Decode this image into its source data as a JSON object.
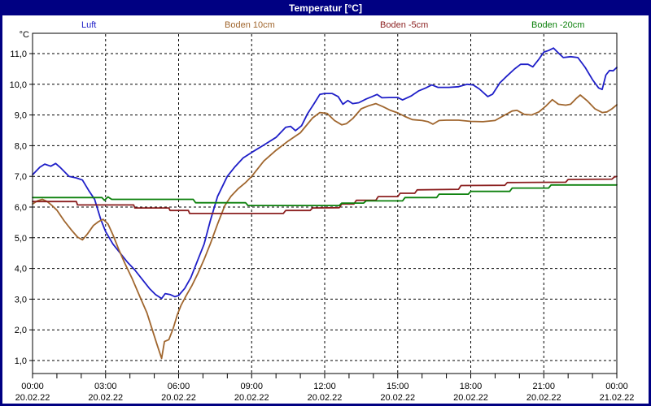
{
  "header": {
    "title": "Temperatur [°C]"
  },
  "colors": {
    "window_chrome": "#000082",
    "plot_background": "#ffffff",
    "grid": "#000000"
  },
  "y_axis": {
    "unit_label": "°C",
    "ticks": [
      {
        "value": 11,
        "label": "11,0"
      },
      {
        "value": 10,
        "label": "10,0"
      },
      {
        "value": 9,
        "label": "9,0"
      },
      {
        "value": 8,
        "label": "8,0"
      },
      {
        "value": 7,
        "label": "7,0"
      },
      {
        "value": 6,
        "label": "6,0"
      },
      {
        "value": 5,
        "label": "5,0"
      },
      {
        "value": 4,
        "label": "4,0"
      },
      {
        "value": 3,
        "label": "3,0"
      },
      {
        "value": 2,
        "label": "2,0"
      },
      {
        "value": 1,
        "label": "1,0"
      }
    ]
  },
  "x_axis": {
    "minor_tick_hours": 1,
    "ticks": [
      {
        "hour": 0,
        "time": "00:00",
        "date": "20.02.22"
      },
      {
        "hour": 3,
        "time": "03:00",
        "date": "20.02.22"
      },
      {
        "hour": 6,
        "time": "06:00",
        "date": "20.02.22"
      },
      {
        "hour": 9,
        "time": "09:00",
        "date": "20.02.22"
      },
      {
        "hour": 12,
        "time": "12:00",
        "date": "20.02.22"
      },
      {
        "hour": 15,
        "time": "15:00",
        "date": "20.02.22"
      },
      {
        "hour": 18,
        "time": "18:00",
        "date": "20.02.22"
      },
      {
        "hour": 21,
        "time": "21:00",
        "date": "20.02.22"
      },
      {
        "hour": 24,
        "time": "00:00",
        "date": "21.02.22"
      }
    ]
  },
  "chart_data": {
    "type": "line",
    "title": "Temperatur [°C]",
    "xlabel": "",
    "ylabel": "°C",
    "x_unit": "hours (20.02.22 00:00 – 21.02.22 00:00)",
    "x_range_hours": [
      0,
      24
    ],
    "ylim": [
      1,
      11
    ],
    "grid": "dashed",
    "legend_position": "top",
    "series": [
      {
        "name": "Luft",
        "color": "#1f1fc8",
        "points": [
          [
            0,
            7.05
          ],
          [
            0.3,
            7.3
          ],
          [
            0.5,
            7.4
          ],
          [
            0.75,
            7.33
          ],
          [
            0.95,
            7.42
          ],
          [
            1.15,
            7.28
          ],
          [
            1.5,
            7.0
          ],
          [
            1.8,
            6.95
          ],
          [
            2.05,
            6.88
          ],
          [
            2.3,
            6.55
          ],
          [
            2.55,
            6.25
          ],
          [
            2.8,
            5.6
          ],
          [
            3.0,
            5.2
          ],
          [
            3.3,
            4.8
          ],
          [
            3.6,
            4.5
          ],
          [
            3.9,
            4.2
          ],
          [
            4.2,
            3.95
          ],
          [
            4.5,
            3.65
          ],
          [
            4.8,
            3.35
          ],
          [
            5.05,
            3.15
          ],
          [
            5.3,
            3.02
          ],
          [
            5.45,
            3.18
          ],
          [
            5.65,
            3.15
          ],
          [
            5.85,
            3.08
          ],
          [
            6.0,
            3.12
          ],
          [
            6.25,
            3.35
          ],
          [
            6.5,
            3.7
          ],
          [
            6.8,
            4.3
          ],
          [
            7.05,
            4.8
          ],
          [
            7.3,
            5.55
          ],
          [
            7.6,
            6.35
          ],
          [
            8.0,
            7.0
          ],
          [
            8.3,
            7.3
          ],
          [
            8.65,
            7.6
          ],
          [
            9.0,
            7.78
          ],
          [
            9.5,
            8.02
          ],
          [
            10.0,
            8.27
          ],
          [
            10.4,
            8.6
          ],
          [
            10.6,
            8.63
          ],
          [
            10.8,
            8.49
          ],
          [
            11.05,
            8.65
          ],
          [
            11.3,
            9.05
          ],
          [
            11.55,
            9.35
          ],
          [
            11.8,
            9.67
          ],
          [
            12.0,
            9.7
          ],
          [
            12.3,
            9.7
          ],
          [
            12.55,
            9.6
          ],
          [
            12.75,
            9.35
          ],
          [
            12.95,
            9.47
          ],
          [
            13.15,
            9.37
          ],
          [
            13.4,
            9.4
          ],
          [
            13.7,
            9.52
          ],
          [
            13.95,
            9.6
          ],
          [
            14.15,
            9.67
          ],
          [
            14.35,
            9.56
          ],
          [
            14.65,
            9.57
          ],
          [
            15.0,
            9.57
          ],
          [
            15.2,
            9.49
          ],
          [
            15.55,
            9.62
          ],
          [
            15.85,
            9.78
          ],
          [
            16.15,
            9.88
          ],
          [
            16.4,
            9.98
          ],
          [
            16.65,
            9.9
          ],
          [
            17.1,
            9.9
          ],
          [
            17.5,
            9.92
          ],
          [
            17.85,
            10.0
          ],
          [
            18.1,
            9.98
          ],
          [
            18.35,
            9.85
          ],
          [
            18.7,
            9.6
          ],
          [
            18.9,
            9.68
          ],
          [
            19.2,
            10.05
          ],
          [
            19.5,
            10.28
          ],
          [
            19.8,
            10.5
          ],
          [
            20.05,
            10.65
          ],
          [
            20.35,
            10.65
          ],
          [
            20.55,
            10.57
          ],
          [
            20.8,
            10.82
          ],
          [
            21.0,
            11.05
          ],
          [
            21.2,
            11.1
          ],
          [
            21.4,
            11.18
          ],
          [
            21.6,
            11.02
          ],
          [
            21.8,
            10.87
          ],
          [
            22.1,
            10.9
          ],
          [
            22.4,
            10.87
          ],
          [
            22.7,
            10.55
          ],
          [
            23.0,
            10.15
          ],
          [
            23.25,
            9.88
          ],
          [
            23.4,
            9.83
          ],
          [
            23.55,
            10.3
          ],
          [
            23.7,
            10.45
          ],
          [
            23.85,
            10.44
          ],
          [
            24,
            10.55
          ]
        ]
      },
      {
        "name": "Boden 10cm",
        "color": "#a0662e",
        "points": [
          [
            0,
            6.1
          ],
          [
            0.2,
            6.2
          ],
          [
            0.4,
            6.25
          ],
          [
            0.6,
            6.18
          ],
          [
            0.8,
            6.05
          ],
          [
            1.0,
            5.9
          ],
          [
            1.3,
            5.55
          ],
          [
            1.6,
            5.25
          ],
          [
            1.85,
            5.02
          ],
          [
            2.05,
            4.93
          ],
          [
            2.25,
            5.12
          ],
          [
            2.5,
            5.4
          ],
          [
            2.7,
            5.52
          ],
          [
            2.9,
            5.6
          ],
          [
            3.1,
            5.45
          ],
          [
            3.3,
            5.1
          ],
          [
            3.55,
            4.6
          ],
          [
            3.8,
            4.15
          ],
          [
            4.1,
            3.65
          ],
          [
            4.4,
            3.1
          ],
          [
            4.7,
            2.55
          ],
          [
            4.9,
            2.05
          ],
          [
            5.1,
            1.55
          ],
          [
            5.3,
            1.07
          ],
          [
            5.42,
            1.62
          ],
          [
            5.6,
            1.68
          ],
          [
            5.78,
            2.05
          ],
          [
            5.95,
            2.5
          ],
          [
            6.1,
            2.8
          ],
          [
            6.3,
            3.1
          ],
          [
            6.55,
            3.45
          ],
          [
            6.8,
            3.85
          ],
          [
            7.05,
            4.3
          ],
          [
            7.3,
            4.8
          ],
          [
            7.6,
            5.45
          ],
          [
            7.9,
            6.05
          ],
          [
            8.15,
            6.35
          ],
          [
            8.45,
            6.6
          ],
          [
            8.75,
            6.8
          ],
          [
            9.0,
            7.0
          ],
          [
            9.5,
            7.5
          ],
          [
            10.0,
            7.85
          ],
          [
            10.5,
            8.15
          ],
          [
            11.0,
            8.42
          ],
          [
            11.5,
            8.9
          ],
          [
            11.8,
            9.08
          ],
          [
            12.1,
            9.05
          ],
          [
            12.4,
            8.82
          ],
          [
            12.7,
            8.68
          ],
          [
            12.9,
            8.72
          ],
          [
            13.15,
            8.88
          ],
          [
            13.5,
            9.2
          ],
          [
            13.8,
            9.3
          ],
          [
            14.1,
            9.37
          ],
          [
            14.4,
            9.27
          ],
          [
            14.7,
            9.15
          ],
          [
            15.0,
            9.07
          ],
          [
            15.3,
            8.95
          ],
          [
            15.6,
            8.85
          ],
          [
            16.0,
            8.82
          ],
          [
            16.25,
            8.78
          ],
          [
            16.45,
            8.7
          ],
          [
            16.7,
            8.82
          ],
          [
            17.0,
            8.83
          ],
          [
            17.5,
            8.83
          ],
          [
            18.0,
            8.79
          ],
          [
            18.5,
            8.78
          ],
          [
            19.0,
            8.82
          ],
          [
            19.4,
            9.0
          ],
          [
            19.7,
            9.13
          ],
          [
            19.9,
            9.15
          ],
          [
            20.2,
            9.02
          ],
          [
            20.5,
            9.0
          ],
          [
            20.8,
            9.1
          ],
          [
            21.1,
            9.3
          ],
          [
            21.35,
            9.5
          ],
          [
            21.6,
            9.35
          ],
          [
            21.9,
            9.32
          ],
          [
            22.1,
            9.35
          ],
          [
            22.35,
            9.55
          ],
          [
            22.5,
            9.65
          ],
          [
            22.8,
            9.45
          ],
          [
            23.1,
            9.2
          ],
          [
            23.4,
            9.08
          ],
          [
            23.6,
            9.1
          ],
          [
            23.8,
            9.2
          ],
          [
            24,
            9.33
          ]
        ]
      },
      {
        "name": "Boden -5cm",
        "color": "#8b1f1f",
        "points": [
          [
            0,
            6.18
          ],
          [
            1.8,
            6.18
          ],
          [
            1.85,
            6.07
          ],
          [
            4.15,
            6.07
          ],
          [
            4.2,
            5.97
          ],
          [
            5.6,
            5.97
          ],
          [
            5.65,
            5.89
          ],
          [
            6.4,
            5.89
          ],
          [
            6.45,
            5.79
          ],
          [
            10.3,
            5.79
          ],
          [
            10.4,
            5.89
          ],
          [
            11.4,
            5.89
          ],
          [
            11.5,
            5.97
          ],
          [
            12.6,
            5.98
          ],
          [
            12.7,
            6.1
          ],
          [
            13.2,
            6.1
          ],
          [
            13.3,
            6.22
          ],
          [
            14.1,
            6.22
          ],
          [
            14.2,
            6.34
          ],
          [
            15.0,
            6.34
          ],
          [
            15.1,
            6.45
          ],
          [
            15.7,
            6.45
          ],
          [
            15.8,
            6.56
          ],
          [
            17.5,
            6.58
          ],
          [
            17.6,
            6.7
          ],
          [
            19.4,
            6.71
          ],
          [
            19.5,
            6.8
          ],
          [
            21.9,
            6.81
          ],
          [
            22.0,
            6.9
          ],
          [
            23.8,
            6.91
          ],
          [
            23.9,
            6.98
          ],
          [
            24,
            7.0
          ]
        ]
      },
      {
        "name": "Boden -20cm",
        "color": "#0b800b",
        "points": [
          [
            0,
            6.31
          ],
          [
            2.85,
            6.31
          ],
          [
            2.95,
            6.22
          ],
          [
            3.1,
            6.33
          ],
          [
            3.25,
            6.25
          ],
          [
            6.6,
            6.25
          ],
          [
            6.7,
            6.14
          ],
          [
            8.75,
            6.14
          ],
          [
            8.85,
            6.05
          ],
          [
            12.6,
            6.05
          ],
          [
            12.7,
            6.13
          ],
          [
            13.6,
            6.13
          ],
          [
            13.7,
            6.2
          ],
          [
            15.2,
            6.2
          ],
          [
            15.3,
            6.31
          ],
          [
            16.6,
            6.31
          ],
          [
            16.7,
            6.42
          ],
          [
            17.9,
            6.42
          ],
          [
            18.0,
            6.51
          ],
          [
            19.6,
            6.51
          ],
          [
            19.7,
            6.62
          ],
          [
            21.2,
            6.62
          ],
          [
            21.3,
            6.72
          ],
          [
            24,
            6.72
          ]
        ]
      }
    ]
  }
}
